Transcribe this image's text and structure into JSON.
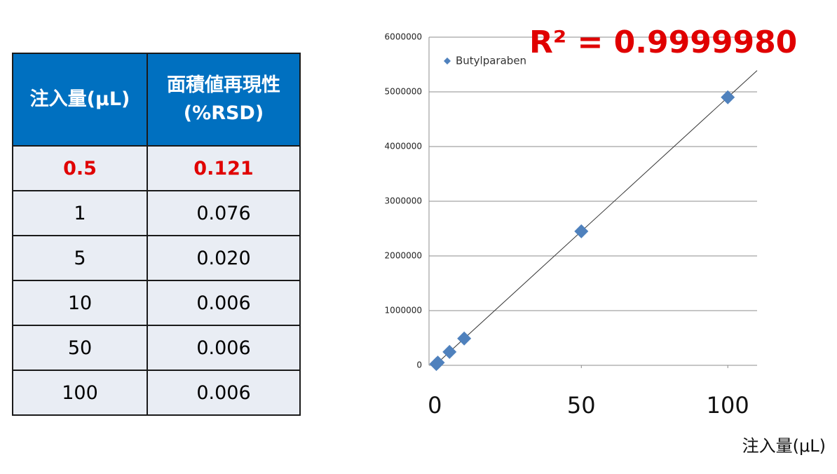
{
  "table": {
    "header": [
      "注入量(μL)",
      "面積値再現性 (%RSD)"
    ],
    "rows": [
      [
        "0.5",
        "0.121"
      ],
      [
        "1",
        "0.076"
      ],
      [
        "5",
        "0.020"
      ],
      [
        "10",
        "0.006"
      ],
      [
        "50",
        "0.006"
      ],
      [
        "100",
        "0.006"
      ]
    ]
  },
  "chart_data": {
    "type": "scatter",
    "x_label": "注入量(μL)",
    "annotation": "R² = 0.9999980",
    "series": [
      {
        "name": "Butylparaben",
        "color": "#4f81bd",
        "x": [
          0.5,
          1,
          5,
          10,
          50,
          100
        ],
        "values": [
          24500,
          49000,
          245000,
          490000,
          2450000,
          4900000
        ]
      }
    ],
    "xlim": [
      -2,
      110
    ],
    "xticks": [
      0,
      50,
      100
    ],
    "ylim": [
      0,
      6000000
    ],
    "yticks": [
      0,
      1000000,
      2000000,
      3000000,
      4000000,
      5000000,
      6000000
    ],
    "grid": true,
    "trendline": true,
    "legend": "top-left"
  }
}
